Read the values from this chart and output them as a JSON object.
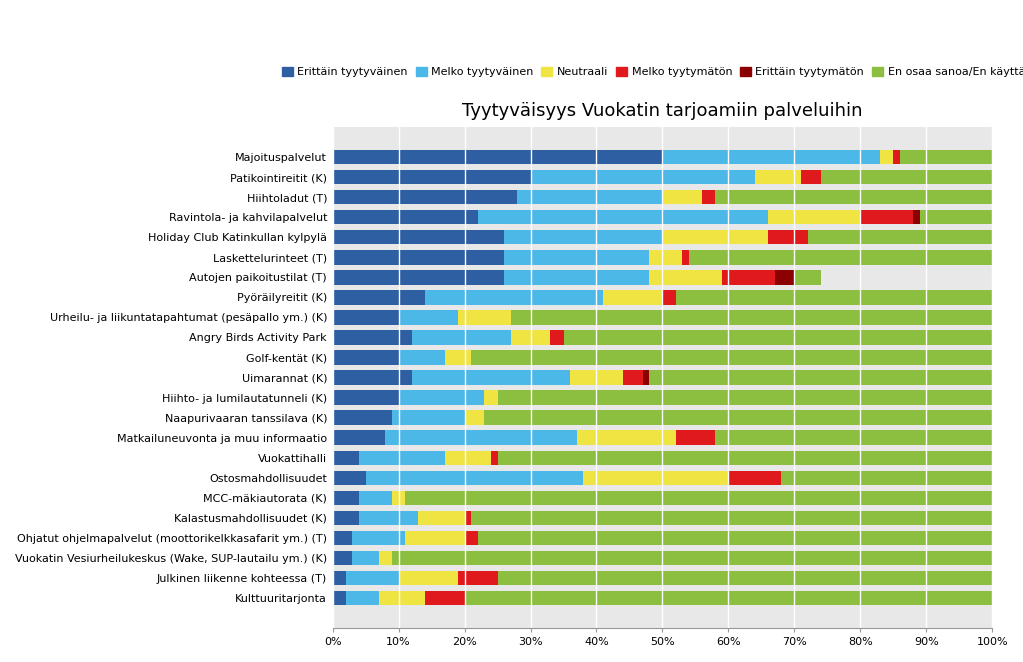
{
  "title": "Tyytyväisyys Vuokatin tarjoamiin palveluihin",
  "categories": [
    "Majoituspalvelut",
    "Patikointireitit (K)",
    "Hiihtoladut (T)",
    "Ravintola- ja kahvilapalvelut",
    "Holiday Club Katinkullan kylpylä",
    "Laskettelurinteet (T)",
    "Autojen paikoitustilat (T)",
    "Pyöräilyreitit (K)",
    "Urheilu- ja liikuntatapahtumat (pesäpallo ym.) (K)",
    "Angry Birds Activity Park",
    "Golf-kentät (K)",
    "Uimarannat (K)",
    "Hiihto- ja lumilautatunneli (K)",
    "Naapurivaaran tanssilava (K)",
    "Matkailuneuvonta ja muu informaatio",
    "Vuokattihalli",
    "Ostosmahdollisuudet",
    "MCC-mäkiautorata (K)",
    "Kalastusmahdollisuudet (K)",
    "Ohjatut ohjelmapalvelut (moottorikelkkasafarit ym.) (T)",
    "Vuokatin Vesiurheilukeskus (Wake, SUP-lautailu ym.) (K)",
    "Julkinen liikenne kohteessa (T)",
    "Kulttuuritarjonta"
  ],
  "legend_labels": [
    "Erittäin tyytyväinen",
    "Melko tyytyväinen",
    "Neutraali",
    "Melko tyytymätön",
    "Erittäin tyytymätön",
    "En osaa sanoa/En käyttänyt"
  ],
  "colors": [
    "#2E5FA3",
    "#4CB8E8",
    "#F0E442",
    "#E0191D",
    "#8B0000",
    "#8CBF3F"
  ],
  "data": [
    [
      50,
      33,
      2,
      1,
      0,
      14
    ],
    [
      30,
      34,
      7,
      3,
      0,
      26
    ],
    [
      28,
      22,
      6,
      2,
      0,
      42
    ],
    [
      22,
      44,
      14,
      8,
      1,
      11
    ],
    [
      26,
      24,
      16,
      6,
      0,
      28
    ],
    [
      26,
      22,
      5,
      1,
      0,
      46
    ],
    [
      26,
      22,
      11,
      8,
      3,
      4
    ],
    [
      14,
      27,
      9,
      2,
      0,
      48
    ],
    [
      10,
      9,
      8,
      0,
      0,
      73
    ],
    [
      12,
      15,
      6,
      2,
      0,
      65
    ],
    [
      10,
      7,
      4,
      0,
      0,
      79
    ],
    [
      12,
      24,
      8,
      3,
      1,
      52
    ],
    [
      10,
      13,
      2,
      0,
      0,
      75
    ],
    [
      9,
      11,
      3,
      0,
      0,
      77
    ],
    [
      8,
      29,
      15,
      6,
      0,
      42
    ],
    [
      4,
      13,
      7,
      1,
      0,
      75
    ],
    [
      5,
      33,
      22,
      8,
      0,
      32
    ],
    [
      4,
      5,
      2,
      0,
      0,
      89
    ],
    [
      4,
      9,
      7,
      1,
      0,
      79
    ],
    [
      3,
      8,
      9,
      2,
      0,
      78
    ],
    [
      3,
      4,
      2,
      0,
      0,
      91
    ],
    [
      2,
      8,
      9,
      6,
      0,
      75
    ],
    [
      2,
      5,
      7,
      6,
      0,
      80
    ]
  ],
  "xlim": [
    0,
    100
  ],
  "xtick_labels": [
    "0%",
    "10%",
    "20%",
    "30%",
    "40%",
    "50%",
    "60%",
    "70%",
    "80%",
    "90%",
    "100%"
  ],
  "xtick_values": [
    0,
    10,
    20,
    30,
    40,
    50,
    60,
    70,
    80,
    90,
    100
  ],
  "bg_color": "#E8E8E8",
  "title_fontsize": 13,
  "legend_fontsize": 8,
  "ytick_fontsize": 8,
  "xtick_fontsize": 8
}
